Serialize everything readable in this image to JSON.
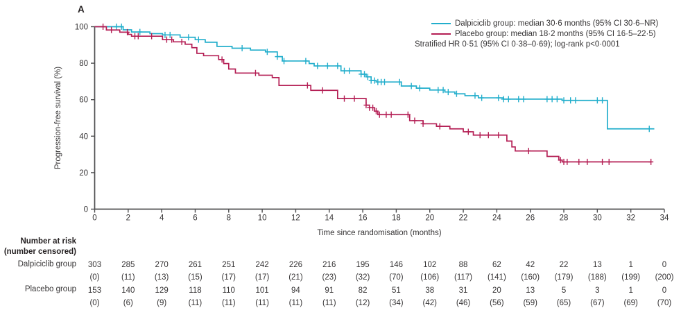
{
  "panel_label": "A",
  "colors": {
    "dalpiciclib": "#22aecc",
    "placebo": "#b41e54",
    "axis": "#4d4d4f",
    "text": "#353334"
  },
  "chart_data": {
    "type": "line",
    "subtype": "kaplan-meier-step",
    "xlabel": "Time since randomisation (months)",
    "ylabel": "Progression-free survival (%)",
    "xlim": [
      0,
      34
    ],
    "ylim": [
      0,
      100
    ],
    "xticks": [
      0,
      2,
      4,
      6,
      8,
      10,
      12,
      14,
      16,
      18,
      20,
      22,
      24,
      26,
      28,
      30,
      32,
      34
    ],
    "yticks": [
      0,
      20,
      40,
      60,
      80,
      100
    ],
    "grid": false,
    "legend_position": "top-right",
    "annotation": "Stratified HR 0·51 (95% CI 0·38–0·69); log-rank p<0·0001",
    "series": [
      {
        "name": "Dalpiciclib group",
        "legend": "Dalpiciclib group: median 30·6 months (95% CI 30·6–NR)",
        "color": "#22aecc",
        "steps": [
          [
            0,
            100
          ],
          [
            1.7,
            98.3
          ],
          [
            2.2,
            97.1
          ],
          [
            3.3,
            96.2
          ],
          [
            4.05,
            95.5
          ],
          [
            5.1,
            94.2
          ],
          [
            6.0,
            92.9
          ],
          [
            6.6,
            91.5
          ],
          [
            7.3,
            89.2
          ],
          [
            8.2,
            88.2
          ],
          [
            9.3,
            87.2
          ],
          [
            10.2,
            86.2
          ],
          [
            10.9,
            83.6
          ],
          [
            11.2,
            81.2
          ],
          [
            12.8,
            79.8
          ],
          [
            13.1,
            78.5
          ],
          [
            14.7,
            75.8
          ],
          [
            15.9,
            74.0
          ],
          [
            16.2,
            72.5
          ],
          [
            16.5,
            70.5
          ],
          [
            16.8,
            69.7
          ],
          [
            18.3,
            67.5
          ],
          [
            19.2,
            66.3
          ],
          [
            20.0,
            65.3
          ],
          [
            20.9,
            64.2
          ],
          [
            21.5,
            63.2
          ],
          [
            22.1,
            62.2
          ],
          [
            22.9,
            61.0
          ],
          [
            24.4,
            60.3
          ],
          [
            27.9,
            59.6
          ],
          [
            30.6,
            44.0
          ],
          [
            33.4,
            44.0
          ]
        ],
        "censor_times": [
          1.3,
          1.6,
          2.7,
          4.2,
          4.5,
          5.6,
          6.2,
          8.8,
          10.3,
          10.9,
          11.3,
          12.6,
          13.3,
          13.9,
          14.5,
          14.9,
          15.2,
          15.9,
          16.1,
          16.3,
          16.5,
          16.7,
          16.9,
          17.1,
          17.3,
          18.2,
          18.9,
          19.4,
          20.5,
          20.8,
          21.1,
          21.6,
          22.7,
          23.1,
          24.1,
          24.4,
          24.7,
          25.3,
          25.6,
          27.0,
          27.3,
          27.6,
          28.0,
          28.4,
          28.7,
          30.0,
          30.3,
          33.1
        ]
      },
      {
        "name": "Placebo group",
        "legend": "Placebo group: median 18·2 months (95% CI 16·5–22·5)",
        "color": "#b41e54",
        "steps": [
          [
            0,
            100
          ],
          [
            0.7,
            98.2
          ],
          [
            1.5,
            97.0
          ],
          [
            2.0,
            95.8
          ],
          [
            2.2,
            94.8
          ],
          [
            4.05,
            92.9
          ],
          [
            4.7,
            91.7
          ],
          [
            5.4,
            90.4
          ],
          [
            5.8,
            88.5
          ],
          [
            6.1,
            85.4
          ],
          [
            6.5,
            84.1
          ],
          [
            7.4,
            82.0
          ],
          [
            7.7,
            79.8
          ],
          [
            8.0,
            76.8
          ],
          [
            8.4,
            74.6
          ],
          [
            9.8,
            73.4
          ],
          [
            10.6,
            72.1
          ],
          [
            11.0,
            67.8
          ],
          [
            12.9,
            65.1
          ],
          [
            14.5,
            60.6
          ],
          [
            16.2,
            57.0
          ],
          [
            16.4,
            55.6
          ],
          [
            16.7,
            53.7
          ],
          [
            16.9,
            51.8
          ],
          [
            18.8,
            48.5
          ],
          [
            19.6,
            46.8
          ],
          [
            20.4,
            45.4
          ],
          [
            21.2,
            44.0
          ],
          [
            22.0,
            42.4
          ],
          [
            22.6,
            40.6
          ],
          [
            24.6,
            37.3
          ],
          [
            24.9,
            34.1
          ],
          [
            25.1,
            31.9
          ],
          [
            27.0,
            28.9
          ],
          [
            27.7,
            26.9
          ],
          [
            27.9,
            25.9
          ],
          [
            33.2,
            25.9
          ]
        ],
        "censor_times": [
          0.5,
          1.0,
          1.95,
          2.4,
          2.6,
          3.4,
          4.3,
          4.6,
          5.2,
          7.6,
          9.6,
          12.7,
          13.6,
          14.9,
          15.5,
          16.2,
          16.4,
          16.6,
          16.8,
          17.0,
          17.4,
          17.7,
          18.7,
          19.1,
          19.6,
          20.6,
          22.3,
          23.0,
          23.5,
          24.1,
          25.9,
          27.8,
          28.0,
          28.2,
          28.9,
          29.4,
          30.3,
          30.7,
          33.2
        ]
      }
    ],
    "risk_table": {
      "header_line1": "Number at risk",
      "header_line2": "(number censored)",
      "times": [
        0,
        2,
        4,
        6,
        8,
        10,
        12,
        14,
        16,
        18,
        20,
        22,
        24,
        26,
        28,
        30,
        32,
        34
      ],
      "rows": [
        {
          "label": "Dalpiciclib group",
          "at_risk": [
            303,
            285,
            270,
            261,
            251,
            242,
            226,
            216,
            195,
            146,
            102,
            88,
            62,
            42,
            22,
            13,
            1,
            0
          ],
          "censored": [
            "(0)",
            "(11)",
            "(13)",
            "(15)",
            "(17)",
            "(17)",
            "(21)",
            "(23)",
            "(32)",
            "(70)",
            "(106)",
            "(117)",
            "(141)",
            "(160)",
            "(179)",
            "(188)",
            "(199)",
            "(200)"
          ]
        },
        {
          "label": "Placebo group",
          "at_risk": [
            153,
            140,
            129,
            118,
            110,
            101,
            94,
            91,
            82,
            51,
            38,
            31,
            20,
            13,
            5,
            3,
            1,
            0
          ],
          "censored": [
            "(0)",
            "(6)",
            "(9)",
            "(11)",
            "(11)",
            "(11)",
            "(11)",
            "(11)",
            "(12)",
            "(34)",
            "(42)",
            "(46)",
            "(56)",
            "(59)",
            "(65)",
            "(67)",
            "(69)",
            "(70)"
          ]
        }
      ]
    }
  }
}
